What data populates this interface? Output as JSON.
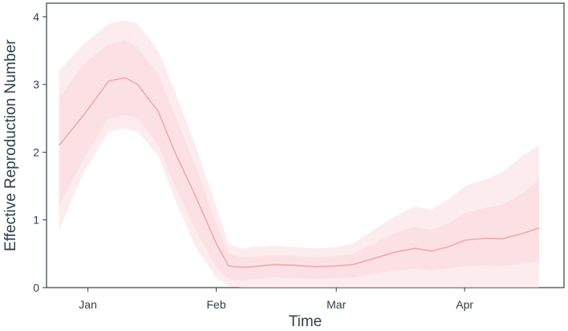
{
  "chart_data": {
    "type": "area",
    "title": "",
    "xlabel": "Time",
    "ylabel": "Effective Reproduction Number",
    "x_tick_labels": [
      "Jan",
      "Feb",
      "Mar",
      "Apr"
    ],
    "x_ticks": [
      "2020-01-01",
      "2020-02-01",
      "2020-03-01",
      "2020-04-01"
    ],
    "x_range": [
      "2019-12-25",
      "2020-04-19"
    ],
    "xlim": [
      "2019-12-22",
      "2020-04-25"
    ],
    "ylim": [
      0,
      4.2
    ],
    "y_ticks": [
      0,
      1,
      2,
      3,
      4
    ],
    "grid": false,
    "legend": "none",
    "colors": {
      "line": "#f1a7ae",
      "band": "#fbdde0",
      "axis": "#2e3f4a"
    },
    "series": [
      {
        "type": "line",
        "x": [
          "2019-12-25",
          "2019-12-31",
          "2020-01-06",
          "2020-01-10",
          "2020-01-13",
          "2020-01-18",
          "2020-01-22",
          "2020-01-27",
          "2020-02-01",
          "2020-02-04",
          "2020-02-07",
          "2020-02-10",
          "2020-02-15",
          "2020-02-20",
          "2020-02-25",
          "2020-03-01",
          "2020-03-05",
          "2020-03-10",
          "2020-03-15",
          "2020-03-20",
          "2020-03-24",
          "2020-03-28",
          "2020-04-01",
          "2020-04-06",
          "2020-04-10",
          "2020-04-15",
          "2020-04-19"
        ],
        "y": [
          2.1,
          2.55,
          3.05,
          3.1,
          3.0,
          2.6,
          2.0,
          1.35,
          0.65,
          0.32,
          0.3,
          0.31,
          0.34,
          0.33,
          0.31,
          0.32,
          0.34,
          0.43,
          0.52,
          0.58,
          0.54,
          0.6,
          0.7,
          0.73,
          0.72,
          0.8,
          0.88
        ]
      },
      {
        "type": "band",
        "level": "outer",
        "x": [
          "2019-12-25",
          "2019-12-31",
          "2020-01-06",
          "2020-01-10",
          "2020-01-13",
          "2020-01-18",
          "2020-01-22",
          "2020-01-27",
          "2020-02-01",
          "2020-02-04",
          "2020-02-07",
          "2020-02-10",
          "2020-02-15",
          "2020-02-20",
          "2020-02-25",
          "2020-03-01",
          "2020-03-05",
          "2020-03-10",
          "2020-03-15",
          "2020-03-20",
          "2020-03-24",
          "2020-03-28",
          "2020-04-01",
          "2020-04-06",
          "2020-04-10",
          "2020-04-15",
          "2020-04-19"
        ],
        "upper": [
          3.2,
          3.6,
          3.9,
          3.95,
          3.9,
          3.5,
          2.9,
          2.1,
          1.2,
          0.65,
          0.58,
          0.6,
          0.62,
          0.6,
          0.58,
          0.6,
          0.65,
          0.85,
          1.05,
          1.2,
          1.15,
          1.3,
          1.5,
          1.6,
          1.7,
          1.95,
          2.1
        ],
        "lower": [
          0.85,
          1.7,
          2.3,
          2.35,
          2.3,
          1.95,
          1.3,
          0.6,
          0.15,
          0.02,
          0.0,
          0.0,
          0.0,
          0.0,
          0.0,
          0.0,
          0.0,
          0.0,
          0.0,
          0.0,
          0.0,
          0.0,
          0.0,
          0.0,
          0.0,
          0.0,
          0.0
        ]
      },
      {
        "type": "band",
        "level": "inner",
        "x": [
          "2019-12-25",
          "2019-12-31",
          "2020-01-06",
          "2020-01-10",
          "2020-01-13",
          "2020-01-18",
          "2020-01-22",
          "2020-01-27",
          "2020-02-01",
          "2020-02-04",
          "2020-02-07",
          "2020-02-10",
          "2020-02-15",
          "2020-02-20",
          "2020-02-25",
          "2020-03-01",
          "2020-03-05",
          "2020-03-10",
          "2020-03-15",
          "2020-03-20",
          "2020-03-24",
          "2020-03-28",
          "2020-04-01",
          "2020-04-06",
          "2020-04-10",
          "2020-04-15",
          "2020-04-19"
        ],
        "upper": [
          2.8,
          3.3,
          3.6,
          3.65,
          3.55,
          3.15,
          2.55,
          1.8,
          0.95,
          0.5,
          0.45,
          0.46,
          0.48,
          0.47,
          0.45,
          0.47,
          0.5,
          0.65,
          0.8,
          0.9,
          0.85,
          0.95,
          1.1,
          1.18,
          1.22,
          1.4,
          1.6
        ],
        "lower": [
          1.2,
          1.9,
          2.5,
          2.55,
          2.5,
          2.1,
          1.5,
          0.85,
          0.3,
          0.12,
          0.1,
          0.12,
          0.15,
          0.14,
          0.13,
          0.14,
          0.15,
          0.2,
          0.25,
          0.28,
          0.25,
          0.28,
          0.32,
          0.33,
          0.32,
          0.35,
          0.38
        ]
      }
    ]
  }
}
